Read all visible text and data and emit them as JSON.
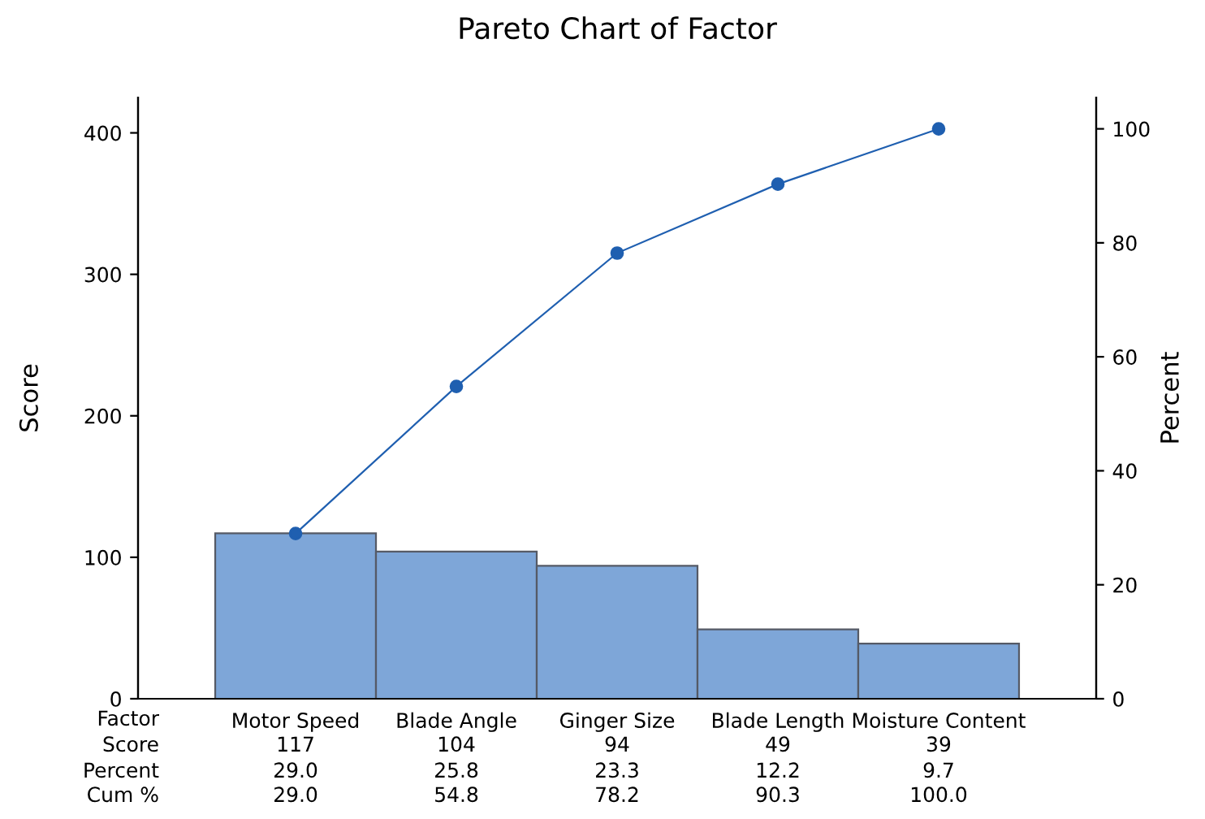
{
  "chart_data": {
    "type": "bar",
    "title": "Pareto Chart of Factor",
    "xlabel": "Factor",
    "ylabel": "Score",
    "y2label": "Percent",
    "categories": [
      "Motor Speed",
      "Blade Angle",
      "Ginger Size",
      "Blade Length",
      "Moisture Content"
    ],
    "series": [
      {
        "color": "#7ea6d8",
        "values": [
          117,
          104,
          94,
          49,
          39
        ],
        "value_labels": [
          "117",
          "104",
          "94",
          "49",
          "39"
        ]
      },
      {
        "type": "line",
        "axis": "y2",
        "color": "#1f5fb0",
        "marker": "circle",
        "values": [
          29.0,
          54.8,
          78.2,
          90.3,
          100.0
        ],
        "value_labels": [
          "29.0",
          "54.8",
          "78.2",
          "90.3",
          "100.0"
        ]
      }
    ],
    "annotations": [
      "Score",
      "Percent",
      "Cum %",
      "29.0",
      "25.8",
      "23.3",
      "12.2",
      "9.7"
    ],
    "ylim": [
      0,
      425
    ],
    "yticks": [
      0,
      100,
      200,
      300,
      400
    ],
    "y2lim": [
      0,
      105.5
    ],
    "y2ticks": [
      0,
      20,
      40,
      60,
      80,
      100
    ],
    "legend": false,
    "grid": false
  }
}
